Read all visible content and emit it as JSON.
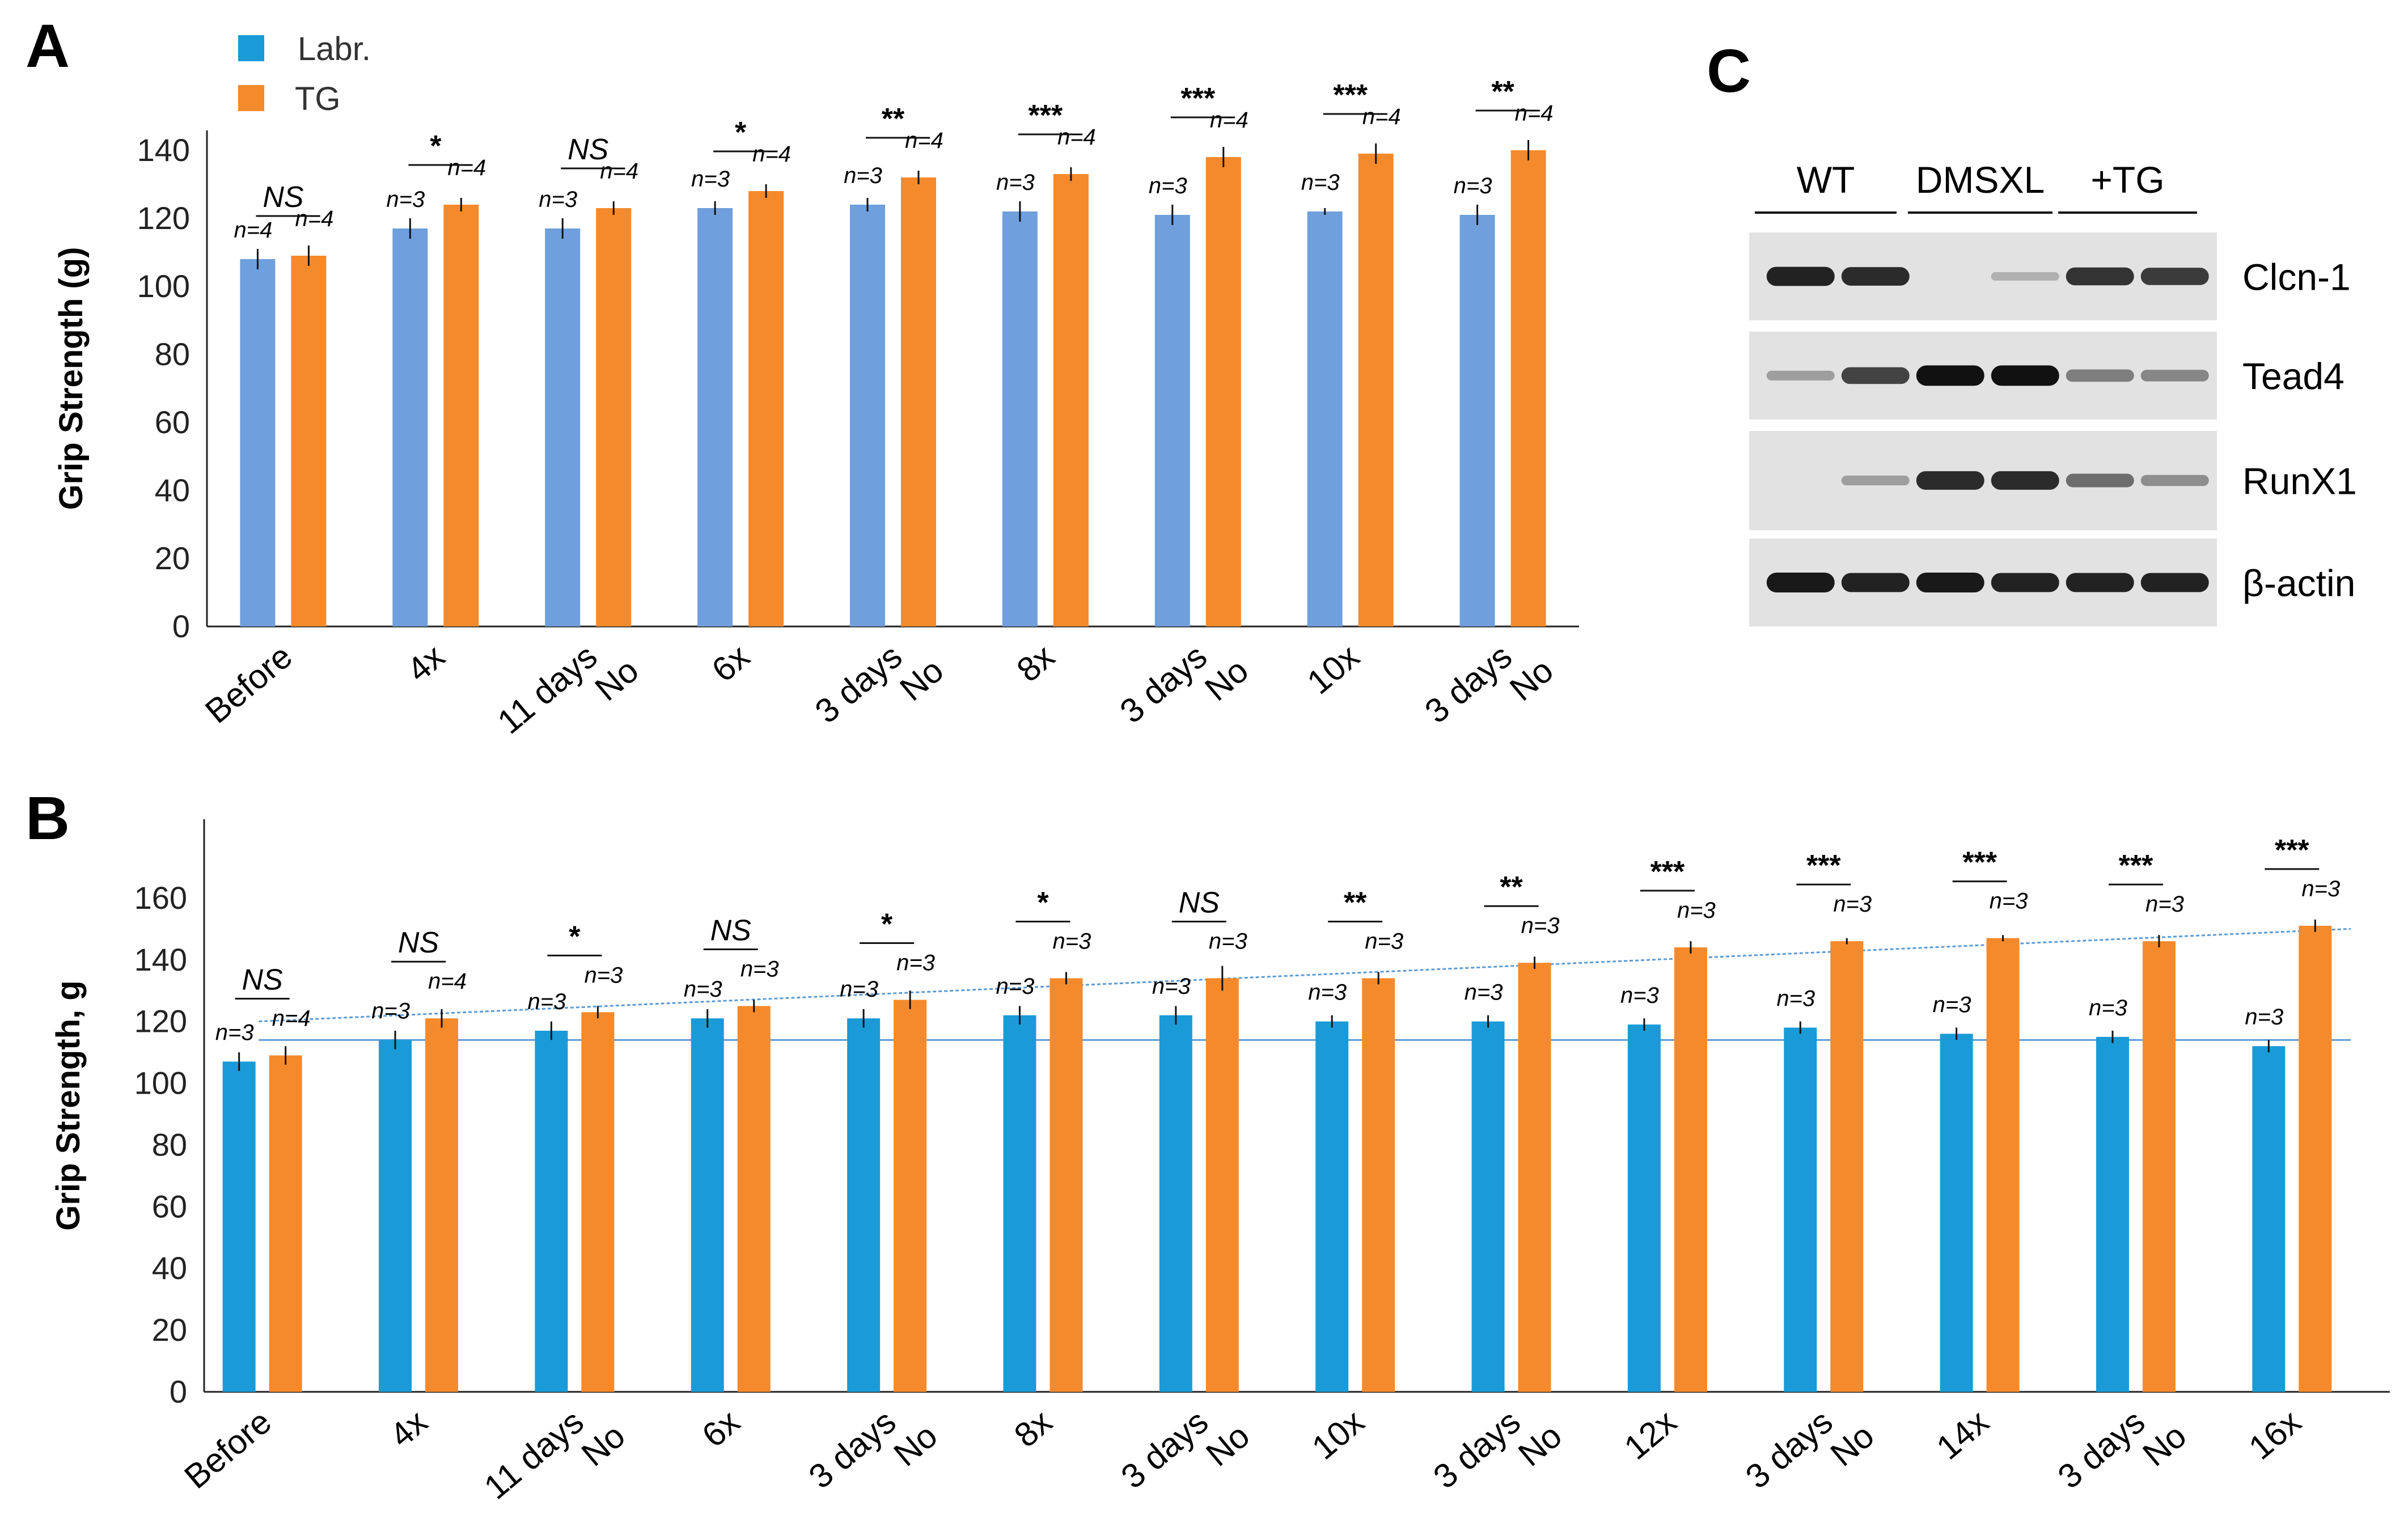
{
  "legend": [
    {
      "name": "Labr.",
      "color": "#4f95d8"
    },
    {
      "name": "TG",
      "color": "#f58a2c"
    }
  ],
  "chart_data": [
    {
      "panel": "A",
      "type": "bar",
      "ylabel": "Grip Strength (g)",
      "xlabel": "",
      "ylim": [
        0,
        150
      ],
      "yticks": [
        0,
        20,
        40,
        60,
        80,
        100,
        120,
        140
      ],
      "colors": {
        "Labr.": "#6f9fdc",
        "TG": "#f58a2c"
      },
      "categories": [
        "Before",
        "4x",
        "11 days\nNo",
        "6x",
        "3 days\nNo",
        "8x",
        "3 days\nNo",
        "10x",
        "3 days\nNo"
      ],
      "series": [
        {
          "name": "Labr.",
          "values": [
            108,
            117,
            117,
            123,
            124,
            122,
            121,
            122,
            121
          ],
          "errors": [
            3,
            3,
            3,
            2,
            2,
            3,
            3,
            1,
            3
          ],
          "n": [
            "n=4",
            "n=3",
            "n=3",
            "n=3",
            "n=3",
            "n=3",
            "n=3",
            "n=3",
            "n=3"
          ]
        },
        {
          "name": "TG",
          "values": [
            109,
            124,
            123,
            128,
            132,
            133,
            138,
            139,
            140
          ],
          "errors": [
            3,
            2,
            2,
            2,
            2,
            2,
            3,
            3,
            3
          ],
          "n": [
            "n=4",
            "n=4",
            "n=4",
            "n=4",
            "n=4",
            "n=4",
            "n=4",
            "n=4",
            "n=4"
          ]
        }
      ],
      "significance": [
        "NS",
        "*",
        "NS",
        "*",
        "**",
        "***",
        "***",
        "***",
        "**"
      ]
    },
    {
      "panel": "B",
      "type": "bar",
      "ylabel": "Grip Strength, g",
      "xlabel": "",
      "ylim": [
        0,
        180
      ],
      "yticks": [
        0,
        20,
        40,
        60,
        80,
        100,
        120,
        140,
        160
      ],
      "colors": {
        "Labr.": "#1a9bd7",
        "TG": "#f58a2c"
      },
      "categories": [
        "Before",
        "4x",
        "11 days\nNo",
        "6x",
        "3 days\nNo",
        "8x",
        "3 days\nNo",
        "10x",
        "3 days\nNo",
        "12x",
        "3 days\nNo",
        "14x",
        "3 days\nNo",
        "16x"
      ],
      "series": [
        {
          "name": "Labr.",
          "values": [
            107,
            114,
            117,
            121,
            121,
            122,
            122,
            120,
            120,
            119,
            118,
            116,
            115,
            112
          ],
          "errors": [
            3,
            3,
            3,
            3,
            3,
            3,
            3,
            2,
            2,
            2,
            2,
            2,
            2,
            2
          ],
          "n": [
            "n=3",
            "n=3",
            "n=3",
            "n=3",
            "n=3",
            "n=3",
            "n=3",
            "n=3",
            "n=3",
            "n=3",
            "n=3",
            "n=3",
            "n=3",
            "n=3"
          ]
        },
        {
          "name": "TG",
          "values": [
            109,
            121,
            123,
            125,
            127,
            134,
            134,
            134,
            139,
            144,
            146,
            147,
            146,
            151
          ],
          "errors": [
            3,
            3,
            2,
            2,
            3,
            2,
            4,
            2,
            2,
            2,
            1,
            1,
            2,
            2
          ],
          "n": [
            "n=4",
            "n=4",
            "n=3",
            "n=3",
            "n=3",
            "n=3",
            "n=3",
            "n=3",
            "n=3",
            "n=3",
            "n=3",
            "n=3",
            "n=3",
            "n=3"
          ]
        }
      ],
      "significance": [
        "NS",
        "NS",
        "*",
        "NS",
        "*",
        "*",
        "NS",
        "**",
        "**",
        "***",
        "***",
        "***",
        "***",
        "***"
      ],
      "reference_lines": [
        {
          "label": "Labr. baseline",
          "from": 114,
          "to": 114,
          "color": "#5b9bd5"
        },
        {
          "label": "TG trend",
          "from": 120,
          "to": 150,
          "color": "#5b9bd5"
        }
      ]
    }
  ],
  "blot": {
    "panel": "C",
    "groups": [
      "WT",
      "DMSXL",
      "+TG"
    ],
    "rows": [
      {
        "label": "Clcn-1",
        "lanes": [
          0.9,
          0.85,
          0.0,
          0.05,
          0.8,
          0.75
        ]
      },
      {
        "label": "Tead4",
        "lanes": [
          0.15,
          0.7,
          1.0,
          1.0,
          0.35,
          0.3
        ]
      },
      {
        "label": "RunX1",
        "lanes": [
          0.0,
          0.15,
          0.85,
          0.85,
          0.45,
          0.25
        ]
      },
      {
        "label": "β-actin",
        "lanes": [
          0.95,
          0.9,
          0.95,
          0.9,
          0.9,
          0.9
        ]
      }
    ]
  }
}
